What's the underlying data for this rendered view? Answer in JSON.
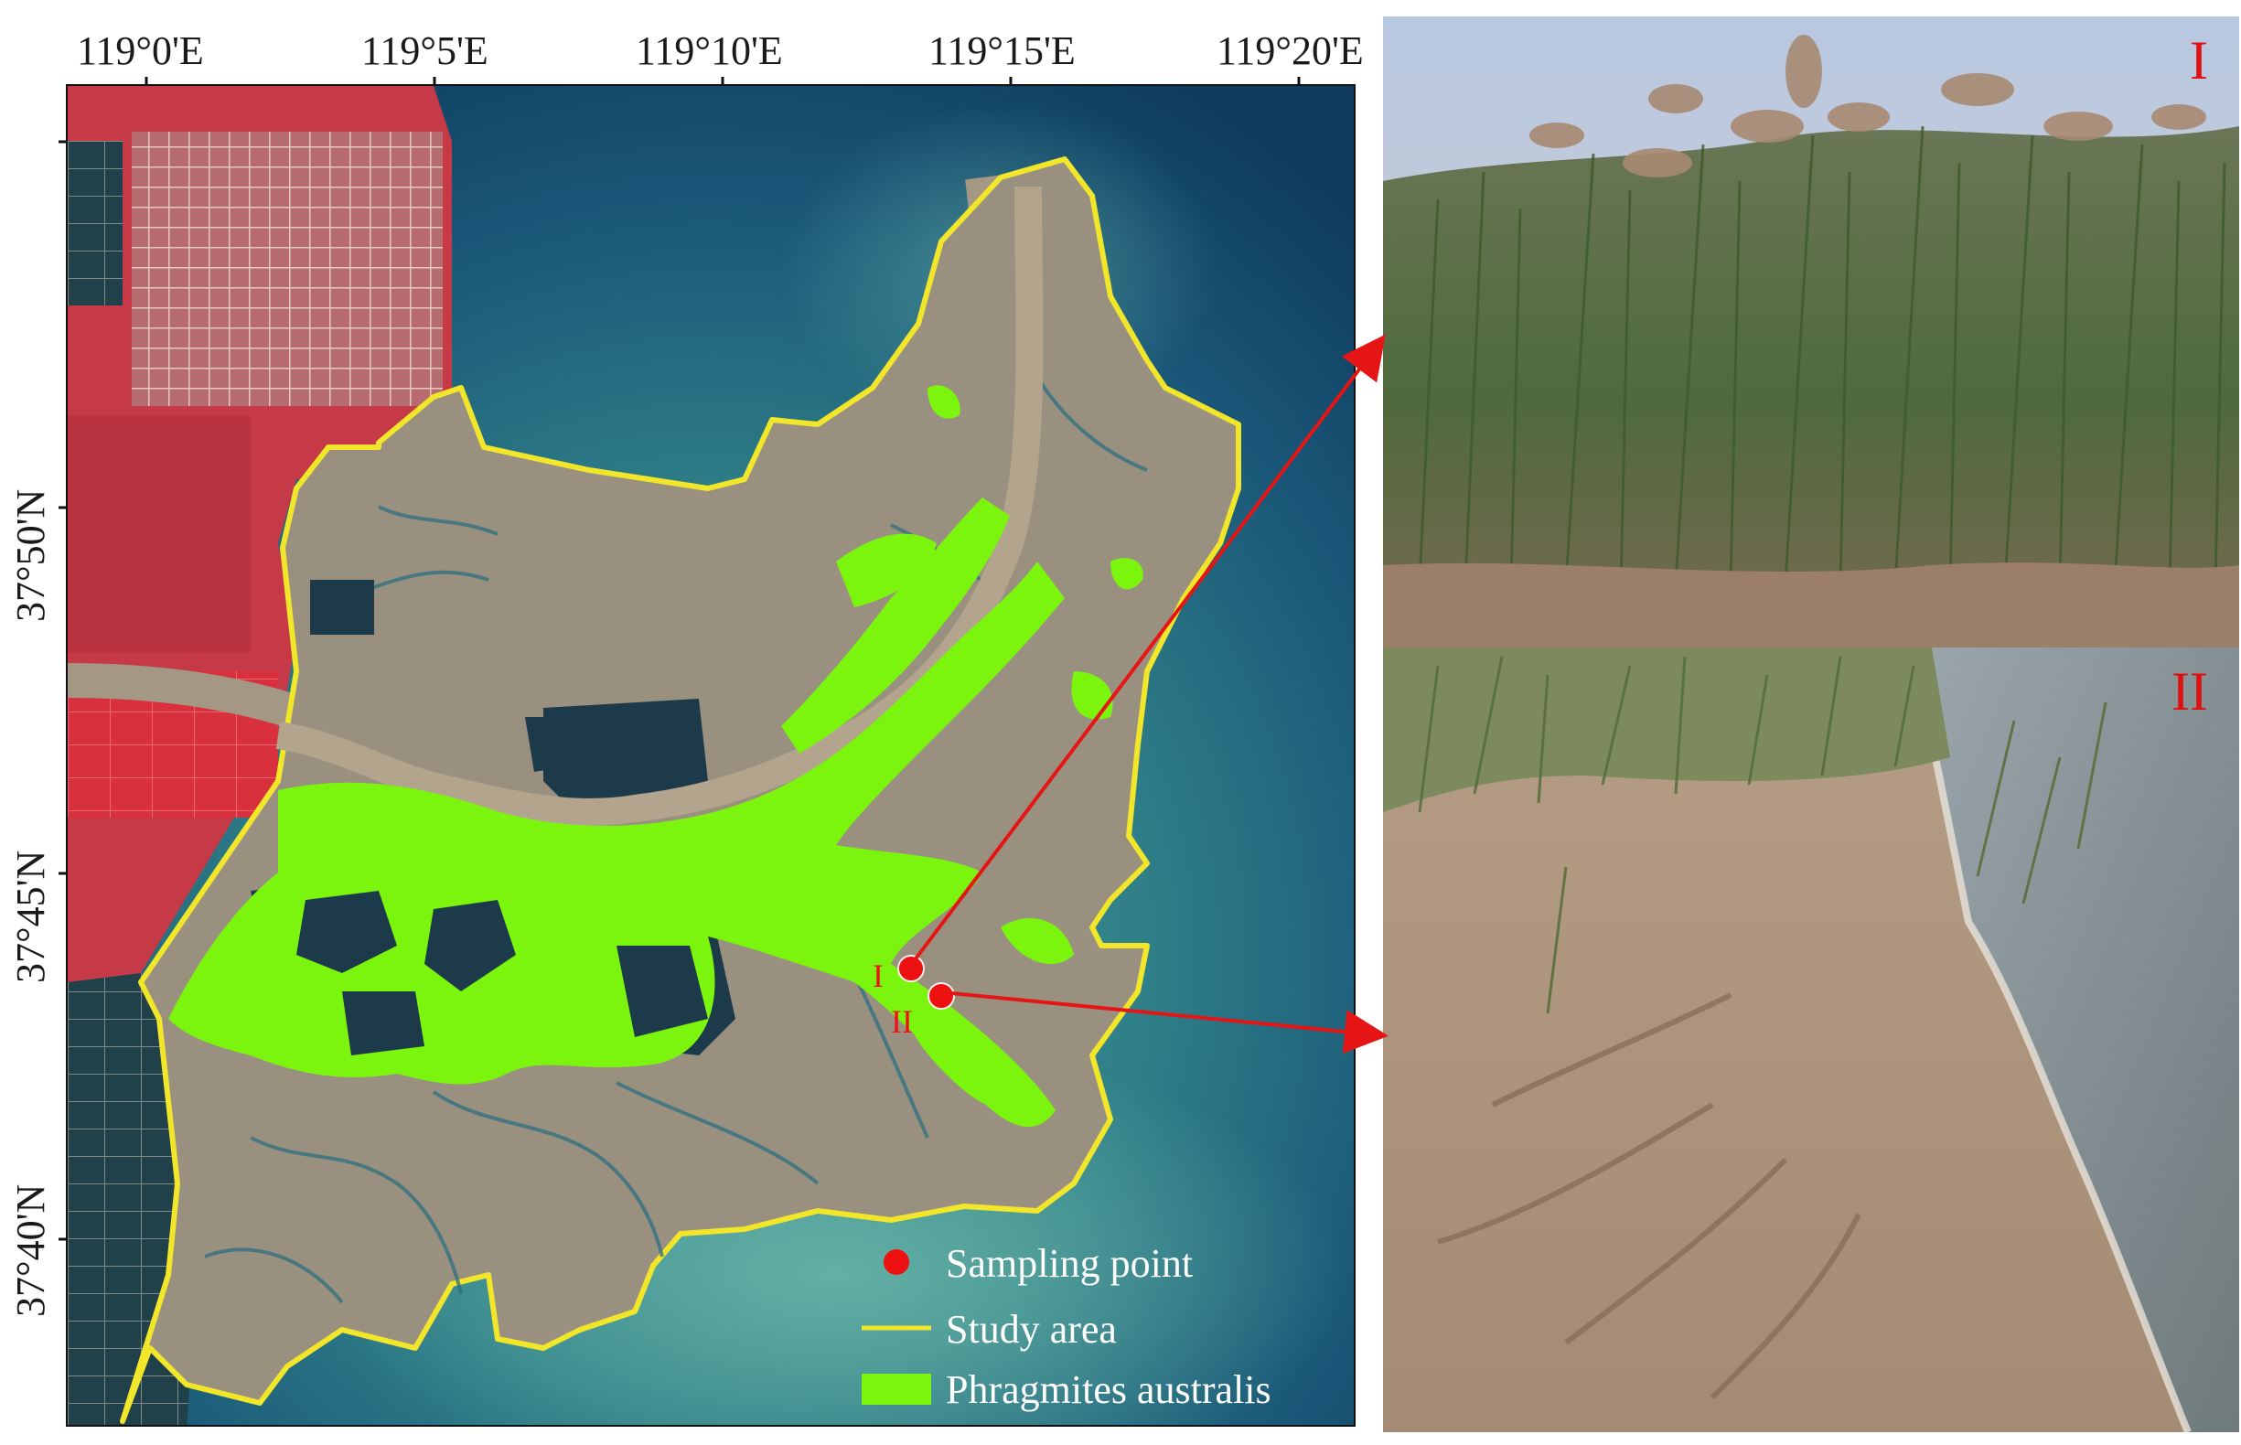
{
  "colors": {
    "sea_deep": "#0e3b5e",
    "sea_turbid": "#3f8f95",
    "tidal_flat": "#9a9080",
    "reclaimed_land": "#c53a46",
    "study_boundary": "#f2e62a",
    "phragmites": "#7cf50e",
    "sampling_point": "#ee1111",
    "arrow": "#e51515"
  },
  "axes": {
    "longitude_ticks": [
      "119°0'E",
      "119°5'E",
      "119°10'E",
      "119°15'E",
      "119°20'E"
    ],
    "latitude_ticks": [
      "37°50'N",
      "37°45'N",
      "37°40'N"
    ]
  },
  "legend": {
    "sampling_point": "Sampling point",
    "study_area": "Study area",
    "phragmites": "Phragmites australis"
  },
  "sampling_points": [
    {
      "label": "I"
    },
    {
      "label": "II"
    }
  ],
  "photos": [
    {
      "label": "I",
      "subject": "reed-stand"
    },
    {
      "label": "II",
      "subject": "sandy-shore"
    }
  ]
}
